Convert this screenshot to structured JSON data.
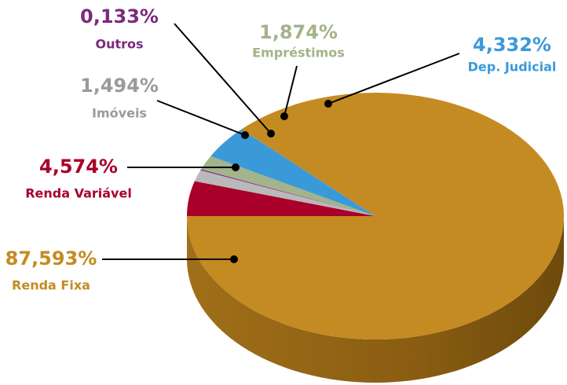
{
  "chart_data": {
    "type": "pie",
    "categories": [
      "Renda Variável",
      "Imóveis",
      "Outros",
      "Empréstimos",
      "Dep. Judicial",
      "Renda Fixa"
    ],
    "values": [
      4.574,
      1.494,
      0.133,
      1.874,
      4.332,
      87.593
    ],
    "value_labels": [
      "4,574%",
      "1,494%",
      "0,133%",
      "1,874%",
      "4,332%",
      "87,593%"
    ],
    "colors": [
      "#a8002a",
      "#b9b9b9",
      "#7b2a7c",
      "#a3b38b",
      "#3a9ad9",
      "#c48b22"
    ]
  }
}
